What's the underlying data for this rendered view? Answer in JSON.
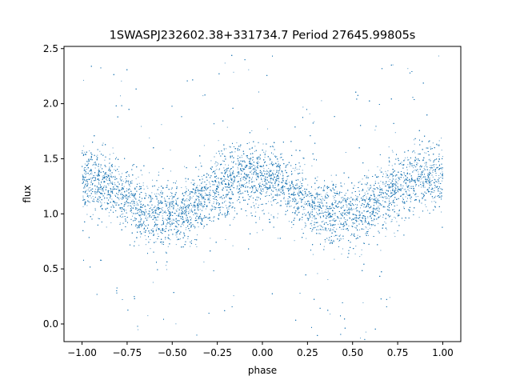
{
  "chart_data": {
    "type": "scatter",
    "title": "1SWASPJ232602.38+331734.7 Period 27645.99805s",
    "xlabel": "phase",
    "ylabel": "flux",
    "xlim": [
      -1.1,
      1.1
    ],
    "ylim": [
      -0.16,
      2.52
    ],
    "xticks": [
      -1.0,
      -0.75,
      -0.5,
      -0.25,
      0.0,
      0.25,
      0.5,
      0.75,
      1.0
    ],
    "xtick_labels": [
      "−1.00",
      "−0.75",
      "−0.50",
      "−0.25",
      "0.00",
      "0.25",
      "0.50",
      "0.75",
      "1.00"
    ],
    "yticks": [
      0.0,
      0.5,
      1.0,
      1.5,
      2.0,
      2.5
    ],
    "ytick_labels": [
      "0.0",
      "0.5",
      "1.0",
      "1.5",
      "2.0",
      "2.5"
    ],
    "grid": false,
    "legend": "none",
    "marker_color": "#1f77b4",
    "series": [
      {
        "x": [
          -1.0,
          -0.9,
          -0.8,
          -0.7,
          -0.6,
          -0.5,
          -0.4,
          -0.3,
          -0.2,
          -0.1,
          0.0,
          0.1,
          0.2,
          0.3,
          0.4,
          0.5,
          0.6,
          0.7,
          0.8,
          0.9,
          1.0
        ],
        "y": [
          1.32,
          1.28,
          1.2,
          1.07,
          0.99,
          0.98,
          1.02,
          1.16,
          1.28,
          1.35,
          1.33,
          1.27,
          1.16,
          1.05,
          0.98,
          0.99,
          1.05,
          1.19,
          1.28,
          1.33,
          1.33
        ],
        "y_spread": 0.15,
        "n_points": 14000
      }
    ]
  }
}
